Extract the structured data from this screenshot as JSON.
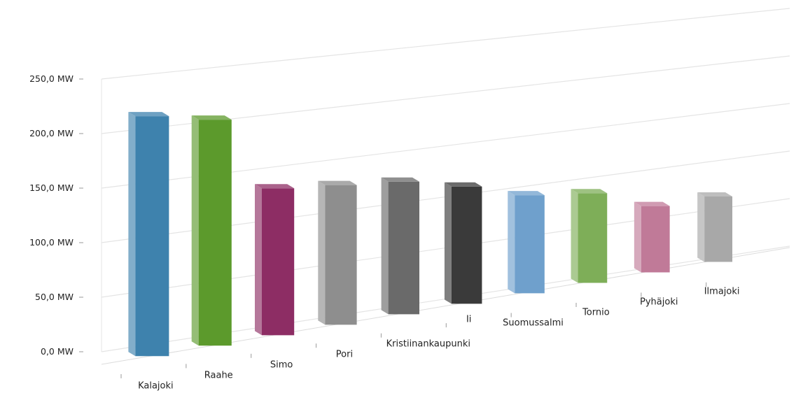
{
  "chart_data": {
    "type": "bar",
    "title": "",
    "xlabel": "",
    "ylabel": "",
    "ylim": [
      0,
      250
    ],
    "y_ticks": [
      "0,0 MW",
      "50,0 MW",
      "100,0 MW",
      "150,0 MW",
      "200,0 MW",
      "250,0 MW"
    ],
    "categories": [
      "Kalajoki",
      "Raahe",
      "Simo",
      "Pori",
      "Kristiinankaupunki",
      "Ii",
      "Suomussalmi",
      "Tornio",
      "Pyhäjoki",
      "Ilmajoki"
    ],
    "values": [
      215,
      205,
      135,
      130,
      125,
      112,
      95,
      88,
      66,
      66
    ],
    "grid": true,
    "style": "3d-perspective",
    "colors": [
      "#3e82ad",
      "#5c9a2c",
      "#8d2d64",
      "#8e8e8e",
      "#6a6a6a",
      "#3a3a3a",
      "#6fa0cc",
      "#7eae58",
      "#c07a98",
      "#a8a8a8"
    ]
  }
}
